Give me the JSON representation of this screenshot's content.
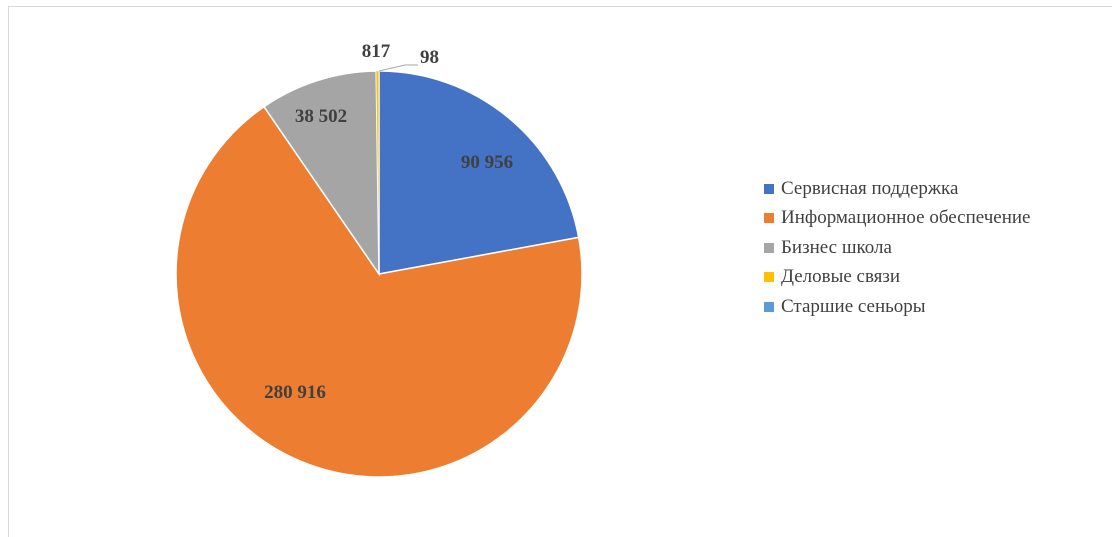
{
  "chart_data": {
    "type": "pie",
    "title": "",
    "slices": [
      {
        "name": "Сервисная поддержка",
        "value": 90956,
        "label": "90 956",
        "color": "#4472C4"
      },
      {
        "name": "Информационное обеспечение",
        "value": 280916,
        "label": "280 916",
        "color": "#ED7D31"
      },
      {
        "name": "Бизнес школа",
        "value": 38502,
        "label": "38 502",
        "color": "#A5A5A5"
      },
      {
        "name": "Деловые связи",
        "value": 817,
        "label": "817",
        "color": "#FFC000"
      },
      {
        "name": "Старшие сеньоры",
        "value": 98,
        "label": "98",
        "color": "#5B9BD5"
      }
    ],
    "legend_position": "right"
  }
}
